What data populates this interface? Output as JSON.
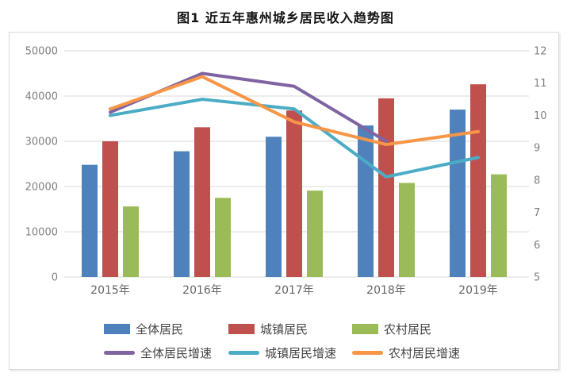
{
  "page": {
    "title": "图1 近五年惠州城乡居民收入趋势图"
  },
  "chart_data": {
    "type": "combo (bar + line)",
    "title": "图1 近五年惠州城乡居民收入趋势图",
    "categories": [
      "2015年",
      "2016年",
      "2017年",
      "2018年",
      "2019年"
    ],
    "bar_series": [
      {
        "name": "全体居民",
        "color": "#4F81BD",
        "axis": "left",
        "values": [
          24800,
          27800,
          31000,
          33500,
          37000
        ]
      },
      {
        "name": "城镇居民",
        "color": "#C0504D",
        "axis": "left",
        "values": [
          30000,
          33100,
          36800,
          39500,
          42600
        ]
      },
      {
        "name": "农村居民",
        "color": "#9BBB59",
        "axis": "left",
        "values": [
          15600,
          17500,
          19100,
          20800,
          22700
        ]
      }
    ],
    "line_series": [
      {
        "name": "全体居民增速",
        "color": "#8064A2",
        "axis": "right",
        "values": [
          10.1,
          11.3,
          10.9,
          9.2,
          null
        ]
      },
      {
        "name": "城镇居民增速",
        "color": "#4BACC6",
        "axis": "right",
        "values": [
          10.0,
          10.5,
          10.2,
          8.1,
          8.7
        ]
      },
      {
        "name": "农村居民增速",
        "color": "#F79646",
        "axis": "right",
        "values": [
          10.2,
          11.2,
          9.8,
          9.1,
          9.5
        ]
      }
    ],
    "left_axis": {
      "min": 0,
      "max": 50000,
      "step": 10000,
      "ticks": [
        "0",
        "10000",
        "20000",
        "30000",
        "40000",
        "50000"
      ]
    },
    "right_axis": {
      "min": 5,
      "max": 12,
      "step": 1,
      "ticks": [
        "5",
        "6",
        "7",
        "8",
        "9",
        "10",
        "11",
        "12"
      ]
    },
    "grid": true,
    "grid_color": "#D9D9D9",
    "legend_position": "bottom"
  }
}
